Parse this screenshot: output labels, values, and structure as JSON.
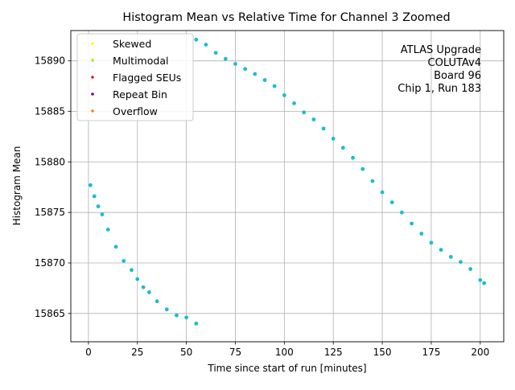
{
  "chart_data": {
    "type": "scatter",
    "title": "Histogram Mean vs Relative Time for Channel 3 Zoomed",
    "xlabel": "Time since start of run [minutes]",
    "ylabel": "Histogram Mean",
    "xlim": [
      -9,
      212
    ],
    "ylim": [
      15862.2,
      15893
    ],
    "xticks": [
      0,
      25,
      50,
      75,
      100,
      125,
      150,
      175,
      200
    ],
    "yticks": [
      15865,
      15870,
      15875,
      15880,
      15885,
      15890
    ],
    "grid": true,
    "legend_position": "top-left",
    "legend": [
      {
        "label": "Skewed",
        "color": "#ffff00"
      },
      {
        "label": "Multimodal",
        "color": "#80ff00"
      },
      {
        "label": "Flagged SEUs",
        "color": "#e41a1c"
      },
      {
        "label": "Repeat Bin",
        "color": "#800080"
      },
      {
        "label": "Overflow",
        "color": "#ff7f0e"
      }
    ],
    "annotation": [
      "ATLAS Upgrade",
      "COLUTAv4",
      "Board 96",
      "Chip 1, Run 183"
    ],
    "point_color": "#17becf",
    "series": [
      {
        "name": "Histogram Mean (segment 1)",
        "x": [
          1,
          3,
          5,
          7,
          10,
          14,
          18,
          22,
          25,
          28,
          31,
          35,
          40,
          45,
          50,
          55
        ],
        "y": [
          15877.7,
          15876.6,
          15875.6,
          15874.8,
          15873.3,
          15871.6,
          15870.2,
          15869.3,
          15868.4,
          15867.6,
          15867.1,
          15866.2,
          15865.4,
          15864.8,
          15864.6,
          15864.0
        ]
      },
      {
        "name": "Histogram Mean (segment 2)",
        "x": [
          55,
          60,
          65,
          70,
          75,
          80,
          85,
          90,
          95,
          100,
          105,
          110,
          115,
          120,
          125,
          130,
          135,
          140,
          145,
          150,
          155,
          160,
          165,
          170,
          175,
          180,
          185,
          190,
          195,
          200,
          202
        ],
        "y": [
          15892.1,
          15891.6,
          15890.8,
          15890.2,
          15889.7,
          15889.2,
          15888.7,
          15888.1,
          15887.5,
          15886.6,
          15885.8,
          15884.9,
          15884.2,
          15883.3,
          15882.3,
          15881.4,
          15880.4,
          15879.3,
          15878.1,
          15877.0,
          15876.0,
          15875.0,
          15873.9,
          15872.9,
          15872.0,
          15871.3,
          15870.6,
          15870.1,
          15869.4,
          15868.3,
          15868.0
        ]
      }
    ]
  }
}
